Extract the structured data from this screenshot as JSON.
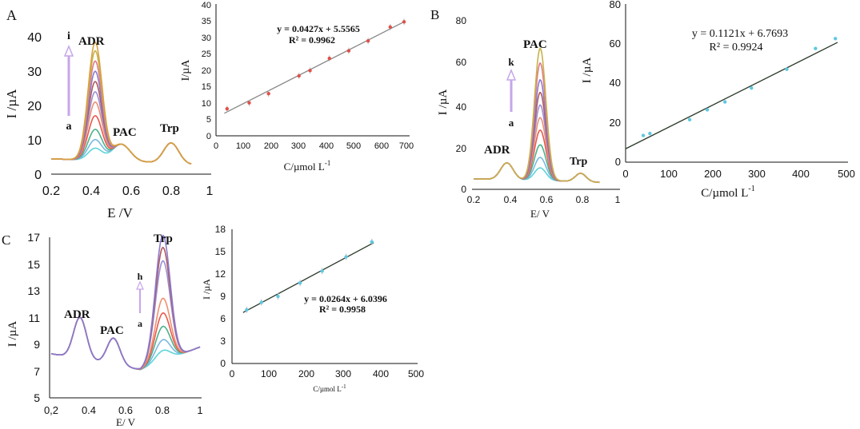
{
  "colors": {
    "curves": [
      "#5fd4d8",
      "#7ab8e0",
      "#49b38a",
      "#e85a4f",
      "#f0906f",
      "#9b8fd6",
      "#b05a5a",
      "#8a7ad0",
      "#e07a8a",
      "#c8b24a",
      "#d8a040"
    ],
    "fit": "#888888",
    "fit_dark": "#2b3a2b",
    "point": "#e0504a",
    "point_cyan": "#5fc8e0",
    "arrow": "#c6a6ea"
  },
  "chart_data": [
    {
      "panel": "A",
      "kind": "voltammogram",
      "type": "line",
      "xlabel": "E /V",
      "ylabel": "I /µA",
      "xlim": [
        0.2,
        1.0
      ],
      "ylim": [
        0,
        40
      ],
      "xticks": [
        "0.2",
        "0.4",
        "0.6",
        "0.8",
        "1"
      ],
      "yticks": [
        "0",
        "10",
        "20",
        "30",
        "40"
      ],
      "baseline": {
        "start": 4.5,
        "mid": 3.5,
        "end": 2.5
      },
      "peaks": [
        {
          "label": "ADR",
          "pos": 0.42,
          "width": 0.035,
          "heights": [
            3.5,
            6,
            9,
            13,
            17,
            20,
            23,
            26,
            29,
            32,
            34.5
          ]
        },
        {
          "label": "PAC",
          "pos": 0.55,
          "width": 0.045,
          "heights": [
            5,
            5,
            5,
            5,
            5,
            5,
            5,
            5,
            5,
            5,
            5
          ]
        },
        {
          "label": "Trp",
          "pos": 0.8,
          "width": 0.038,
          "heights": [
            6,
            6,
            6,
            6,
            6,
            6,
            6,
            6,
            6,
            6,
            6
          ]
        }
      ],
      "arrow": {
        "from": "a",
        "to": "i"
      }
    },
    {
      "panel": "A",
      "kind": "calibration",
      "type": "scatter",
      "xlabel": "C/µmol L",
      "xlabel_sup": "-1",
      "ylabel": "I/µA",
      "xlim": [
        0,
        700
      ],
      "ylim": [
        0,
        40
      ],
      "xticks": [
        "0",
        "100",
        "200",
        "300",
        "400",
        "500",
        "600",
        "700"
      ],
      "yticks": [
        "0",
        "5",
        "10",
        "15",
        "20",
        "25",
        "30",
        "35",
        "40"
      ],
      "x": [
        40,
        120,
        190,
        300,
        340,
        410,
        480,
        550,
        630,
        680
      ],
      "y": [
        8.2,
        10.0,
        12.8,
        18.2,
        19.8,
        23.5,
        25.8,
        28.8,
        33.0,
        34.6
      ],
      "fit": {
        "slope": 0.0427,
        "intercept": 5.5565
      },
      "equation": "y = 0.0427x + 5.5565",
      "r2": "R² = 0.9962"
    },
    {
      "panel": "B",
      "kind": "voltammogram",
      "type": "line",
      "xlabel": "E/ V",
      "ylabel": "I /µA",
      "xlim": [
        0.2,
        1.0
      ],
      "ylim": [
        0,
        80
      ],
      "xticks": [
        "0.2",
        "0.4",
        "0.6",
        "0.8",
        "1"
      ],
      "yticks": [
        "0",
        "20",
        "40",
        "60",
        "80"
      ],
      "baseline": {
        "start": 5,
        "mid": 4,
        "end": 3
      },
      "peaks": [
        {
          "label": "ADR",
          "pos": 0.385,
          "width": 0.035,
          "heights": [
            8,
            8,
            8,
            8,
            8,
            8,
            8,
            8,
            8,
            8
          ]
        },
        {
          "label": "PAC",
          "pos": 0.57,
          "width": 0.032,
          "heights": [
            6,
            11,
            17,
            24,
            30,
            36,
            42,
            48,
            56,
            63
          ]
        },
        {
          "label": "Trp",
          "pos": 0.795,
          "width": 0.03,
          "heights": [
            4,
            4,
            4,
            4,
            4,
            4,
            4,
            4,
            4,
            4
          ]
        }
      ],
      "arrow": {
        "from": "a",
        "to": "k"
      }
    },
    {
      "panel": "B",
      "kind": "calibration",
      "type": "scatter",
      "xlabel": "C/µmol L",
      "xlabel_sup": "-1",
      "ylabel": "I /µA",
      "xlim": [
        0,
        500
      ],
      "ylim": [
        0,
        80
      ],
      "xticks": [
        "0",
        "100",
        "200",
        "300",
        "400",
        "500"
      ],
      "yticks": [
        "0",
        "20",
        "40",
        "60",
        "80"
      ],
      "x": [
        40,
        55,
        145,
        185,
        225,
        285,
        365,
        430,
        475
      ],
      "y": [
        13.5,
        14.5,
        21.5,
        26.5,
        30.5,
        37.5,
        47.0,
        57.5,
        62.5
      ],
      "fit": {
        "slope": 0.1121,
        "intercept": 6.7693
      },
      "equation": "y = 0.1121x + 6.7693",
      "r2": "R² = 0.9924"
    },
    {
      "panel": "C",
      "kind": "voltammogram",
      "type": "line",
      "xlabel": "E/ V",
      "ylabel": "I /µA",
      "xlim": [
        0.2,
        1.0
      ],
      "ylim": [
        5,
        17
      ],
      "xticks": [
        "0,2",
        "0.4",
        "0.6",
        "0.8",
        "1"
      ],
      "yticks": [
        "5",
        "7",
        "9",
        "11",
        "13",
        "15",
        "17"
      ],
      "baseline": {
        "start": 8.3,
        "mid": 7.1,
        "end": 8.8
      },
      "peaks": [
        {
          "label": "ADR",
          "pos": 0.355,
          "width": 0.035,
          "heights": [
            3.1,
            3.1,
            3.1,
            3.1,
            3.1,
            3.1,
            3.1,
            3.1
          ]
        },
        {
          "label": "PAC",
          "pos": 0.535,
          "width": 0.035,
          "heights": [
            2.0,
            2.0,
            2.0,
            2.0,
            2.0,
            2.0,
            2.0,
            2.0
          ]
        },
        {
          "label": "Trp",
          "pos": 0.8,
          "width": 0.04,
          "heights": [
            0.8,
            1.6,
            2.6,
            3.6,
            4.7,
            7.5,
            8.5,
            9.4
          ]
        }
      ],
      "arrow": {
        "from": "a",
        "to": "h"
      }
    },
    {
      "panel": "C",
      "kind": "calibration",
      "type": "scatter",
      "xlabel": "C/µmol L",
      "xlabel_sup": "-1",
      "ylabel": "I /µA",
      "xlim": [
        0,
        500
      ],
      "ylim": [
        0,
        18
      ],
      "xticks": [
        "0",
        "100",
        "200",
        "300",
        "400",
        "500"
      ],
      "yticks": [
        "0",
        "3",
        "6",
        "9",
        "12",
        "15",
        "18"
      ],
      "x": [
        40,
        80,
        125,
        185,
        245,
        310,
        380
      ],
      "y": [
        7.2,
        8.2,
        9.0,
        10.8,
        12.4,
        14.3,
        16.3
      ],
      "fit": {
        "slope": 0.0264,
        "intercept": 6.0396
      },
      "equation": "y = 0.0264x + 6.0396",
      "r2": "R² = 0.9958"
    }
  ]
}
